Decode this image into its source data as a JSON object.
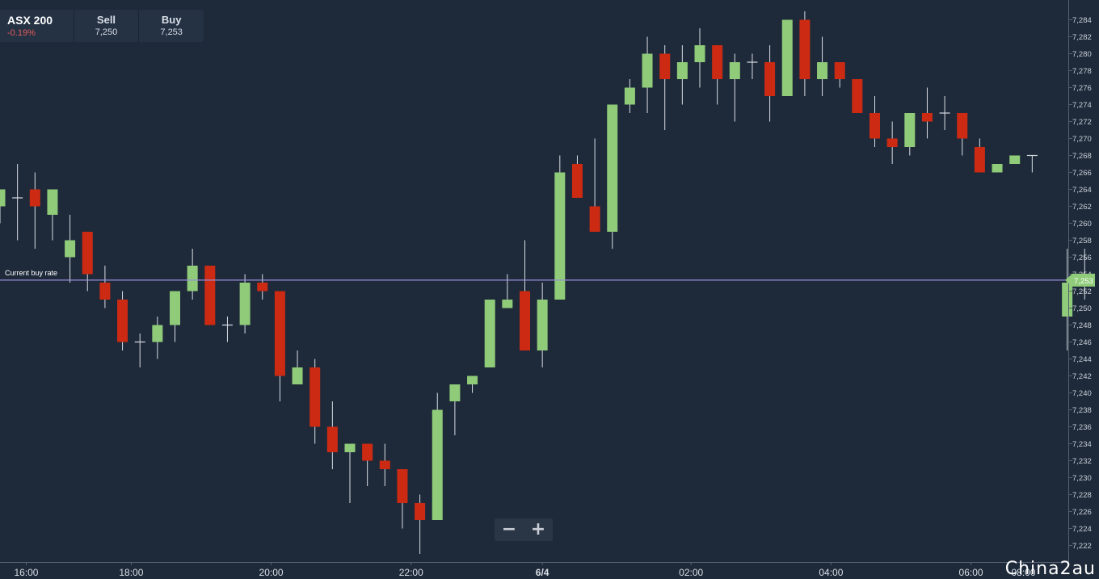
{
  "header": {
    "symbol": "ASX 200",
    "change": "-0.19%",
    "sell_label": "Sell",
    "sell_value": "7,250",
    "buy_label": "Buy",
    "buy_value": "7,253"
  },
  "zoom": {
    "minus": "−",
    "plus": "+"
  },
  "watermark": "China2au",
  "colors": {
    "background": "#1e2a3a",
    "up": "#8fcb78",
    "down": "#cc2a12",
    "wick": "#d9dde3",
    "current_line": "#9a8fd8",
    "current_tag": "#8fcb78"
  },
  "chart_data": {
    "type": "candlestick",
    "ylim": [
      7221,
      7286
    ],
    "y_ticks": [
      "7,222",
      "7,224",
      "7,226",
      "7,228",
      "7,230",
      "7,232",
      "7,234",
      "7,236",
      "7,238",
      "7,240",
      "7,242",
      "7,244",
      "7,246",
      "7,248",
      "7,250",
      "7,252",
      "7,254",
      "7,256",
      "7,258",
      "7,260",
      "7,262",
      "7,264",
      "7,266",
      "7,268",
      "7,270",
      "7,272",
      "7,274",
      "7,276",
      "7,278",
      "7,280",
      "7,282",
      "7,284"
    ],
    "x_ticks": [
      {
        "label": "16:00",
        "index": 1.5,
        "bold": false
      },
      {
        "label": "18:00",
        "index": 7.5,
        "bold": false
      },
      {
        "label": "20:00",
        "index": 15.5,
        "bold": false
      },
      {
        "label": "22:00",
        "index": 23.5,
        "bold": false
      },
      {
        "label": "6/4",
        "index": 31,
        "bold": true
      },
      {
        "label": "02:00",
        "index": 39.5,
        "bold": false
      },
      {
        "label": "04:00",
        "index": 47.5,
        "bold": false
      },
      {
        "label": "06:00",
        "index": 55.5,
        "bold": false
      },
      {
        "label": "08:00",
        "index": 58.5,
        "bold": false
      }
    ],
    "current_buy_rate": {
      "label": "Current buy rate",
      "value": 7253.3,
      "tag": "7,253"
    },
    "candles": [
      {
        "o": 7262,
        "h": 7264,
        "l": 7260,
        "c": 7264
      },
      {
        "o": 7263,
        "h": 7267,
        "l": 7258,
        "c": 7263
      },
      {
        "o": 7264,
        "h": 7266,
        "l": 7257,
        "c": 7262
      },
      {
        "o": 7261,
        "h": 7264,
        "l": 7258,
        "c": 7264
      },
      {
        "o": 7256,
        "h": 7261,
        "l": 7253,
        "c": 7258
      },
      {
        "o": 7259,
        "h": 7259,
        "l": 7252,
        "c": 7254
      },
      {
        "o": 7253,
        "h": 7255,
        "l": 7250,
        "c": 7251
      },
      {
        "o": 7251,
        "h": 7252,
        "l": 7245,
        "c": 7246
      },
      {
        "o": 7246,
        "h": 7247,
        "l": 7243,
        "c": 7246
      },
      {
        "o": 7246,
        "h": 7249,
        "l": 7244,
        "c": 7248
      },
      {
        "o": 7248,
        "h": 7252,
        "l": 7246,
        "c": 7252
      },
      {
        "o": 7252,
        "h": 7257,
        "l": 7251,
        "c": 7255
      },
      {
        "o": 7255,
        "h": 7255,
        "l": 7248,
        "c": 7248
      },
      {
        "o": 7248,
        "h": 7249,
        "l": 7246,
        "c": 7248
      },
      {
        "o": 7248,
        "h": 7254,
        "l": 7247,
        "c": 7253
      },
      {
        "o": 7253,
        "h": 7254,
        "l": 7251,
        "c": 7252
      },
      {
        "o": 7252,
        "h": 7252,
        "l": 7239,
        "c": 7242
      },
      {
        "o": 7241,
        "h": 7245,
        "l": 7241,
        "c": 7243
      },
      {
        "o": 7243,
        "h": 7244,
        "l": 7234,
        "c": 7236
      },
      {
        "o": 7236,
        "h": 7239,
        "l": 7231,
        "c": 7233
      },
      {
        "o": 7233,
        "h": 7234,
        "l": 7227,
        "c": 7234
      },
      {
        "o": 7234,
        "h": 7234,
        "l": 7229,
        "c": 7232
      },
      {
        "o": 7232,
        "h": 7234,
        "l": 7229,
        "c": 7231
      },
      {
        "o": 7231,
        "h": 7231,
        "l": 7224,
        "c": 7227
      },
      {
        "o": 7227,
        "h": 7228,
        "l": 7221,
        "c": 7225
      },
      {
        "o": 7225,
        "h": 7240,
        "l": 7225,
        "c": 7238
      },
      {
        "o": 7239,
        "h": 7241,
        "l": 7235,
        "c": 7241
      },
      {
        "o": 7241,
        "h": 7242,
        "l": 7240,
        "c": 7242
      },
      {
        "o": 7243,
        "h": 7251,
        "l": 7243,
        "c": 7251
      },
      {
        "o": 7250,
        "h": 7254,
        "l": 7250,
        "c": 7251
      },
      {
        "o": 7252,
        "h": 7258,
        "l": 7245,
        "c": 7245
      },
      {
        "o": 7245,
        "h": 7253,
        "l": 7243,
        "c": 7251
      },
      {
        "o": 7251,
        "h": 7268,
        "l": 7251,
        "c": 7266
      },
      {
        "o": 7267,
        "h": 7268,
        "l": 7263,
        "c": 7263
      },
      {
        "o": 7262,
        "h": 7270,
        "l": 7259,
        "c": 7259
      },
      {
        "o": 7259,
        "h": 7274,
        "l": 7257,
        "c": 7274
      },
      {
        "o": 7274,
        "h": 7277,
        "l": 7273,
        "c": 7276
      },
      {
        "o": 7276,
        "h": 7282,
        "l": 7273,
        "c": 7280
      },
      {
        "o": 7280,
        "h": 7281,
        "l": 7271,
        "c": 7277
      },
      {
        "o": 7277,
        "h": 7281,
        "l": 7274,
        "c": 7279
      },
      {
        "o": 7279,
        "h": 7283,
        "l": 7276,
        "c": 7281
      },
      {
        "o": 7281,
        "h": 7281,
        "l": 7274,
        "c": 7277
      },
      {
        "o": 7277,
        "h": 7280,
        "l": 7272,
        "c": 7279
      },
      {
        "o": 7279,
        "h": 7280,
        "l": 7277,
        "c": 7279
      },
      {
        "o": 7279,
        "h": 7281,
        "l": 7272,
        "c": 7275
      },
      {
        "o": 7275,
        "h": 7284,
        "l": 7275,
        "c": 7284
      },
      {
        "o": 7284,
        "h": 7285,
        "l": 7275,
        "c": 7277
      },
      {
        "o": 7277,
        "h": 7282,
        "l": 7275,
        "c": 7279
      },
      {
        "o": 7279,
        "h": 7279,
        "l": 7276,
        "c": 7277
      },
      {
        "o": 7277,
        "h": 7277,
        "l": 7273,
        "c": 7273
      },
      {
        "o": 7273,
        "h": 7275,
        "l": 7269,
        "c": 7270
      },
      {
        "o": 7270,
        "h": 7272,
        "l": 7267,
        "c": 7269
      },
      {
        "o": 7269,
        "h": 7273,
        "l": 7268,
        "c": 7273
      },
      {
        "o": 7273,
        "h": 7276,
        "l": 7270,
        "c": 7272
      },
      {
        "o": 7273,
        "h": 7275,
        "l": 7271,
        "c": 7273
      },
      {
        "o": 7273,
        "h": 7273,
        "l": 7268,
        "c": 7270
      },
      {
        "o": 7269,
        "h": 7270,
        "l": 7266,
        "c": 7266
      },
      {
        "o": 7266,
        "h": 7267,
        "l": 7266,
        "c": 7267
      },
      {
        "o": 7267,
        "h": 7268,
        "l": 7267,
        "c": 7268
      },
      {
        "o": 7268,
        "h": 7268,
        "l": 7266,
        "c": 7268
      },
      null,
      {
        "o": 7249,
        "h": 7257,
        "l": 7245,
        "c": 7253
      },
      {
        "o": 7253,
        "h": 7257,
        "l": 7251,
        "c": 7253
      }
    ]
  }
}
